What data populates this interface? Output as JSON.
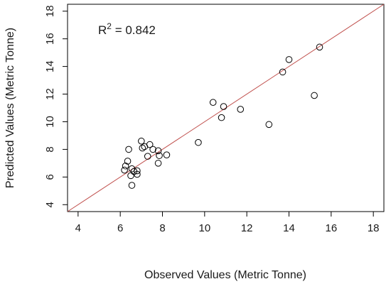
{
  "chart_data": {
    "type": "scatter",
    "title": "",
    "xlabel": "Observed Values (Metric Tonne)",
    "ylabel": "Predicted Values (Metric Tonne)",
    "xlim": [
      3.5,
      18.5
    ],
    "ylim": [
      3.5,
      18.5
    ],
    "x_ticks": [
      4,
      6,
      8,
      10,
      12,
      14,
      16,
      18
    ],
    "y_ticks": [
      4,
      6,
      8,
      10,
      12,
      14,
      16,
      18
    ],
    "x_tick_labels": [
      "4",
      "6",
      "8",
      "10",
      "12",
      "14",
      "16",
      "18"
    ],
    "y_tick_labels": [
      "4",
      "6",
      "8",
      "10",
      "12",
      "14",
      "16",
      "18"
    ],
    "grid": false,
    "annotation": {
      "r_label": "R",
      "r_superscript": "2",
      "text": " = 0.842"
    },
    "reference_line": {
      "type": "y=x",
      "color": "#c0504d"
    },
    "marker": {
      "shape": "open-circle",
      "color": "#000000"
    },
    "points": [
      {
        "x": 6.2,
        "y": 6.5
      },
      {
        "x": 6.25,
        "y": 6.8
      },
      {
        "x": 6.35,
        "y": 7.15
      },
      {
        "x": 6.4,
        "y": 8.0
      },
      {
        "x": 6.5,
        "y": 6.1
      },
      {
        "x": 6.55,
        "y": 6.6
      },
      {
        "x": 6.55,
        "y": 5.4
      },
      {
        "x": 6.65,
        "y": 6.4
      },
      {
        "x": 6.8,
        "y": 6.2
      },
      {
        "x": 6.8,
        "y": 6.45
      },
      {
        "x": 7.0,
        "y": 8.6
      },
      {
        "x": 7.05,
        "y": 8.1
      },
      {
        "x": 7.15,
        "y": 8.2
      },
      {
        "x": 7.3,
        "y": 7.5
      },
      {
        "x": 7.4,
        "y": 8.35
      },
      {
        "x": 7.55,
        "y": 8.0
      },
      {
        "x": 7.8,
        "y": 7.9
      },
      {
        "x": 7.8,
        "y": 7.0
      },
      {
        "x": 7.85,
        "y": 7.55
      },
      {
        "x": 8.2,
        "y": 7.6
      },
      {
        "x": 9.7,
        "y": 8.5
      },
      {
        "x": 10.4,
        "y": 11.4
      },
      {
        "x": 10.8,
        "y": 10.3
      },
      {
        "x": 10.9,
        "y": 11.1
      },
      {
        "x": 11.7,
        "y": 10.9
      },
      {
        "x": 13.05,
        "y": 9.8
      },
      {
        "x": 13.7,
        "y": 13.6
      },
      {
        "x": 14.0,
        "y": 14.5
      },
      {
        "x": 15.2,
        "y": 11.9
      },
      {
        "x": 15.45,
        "y": 15.4
      }
    ]
  }
}
